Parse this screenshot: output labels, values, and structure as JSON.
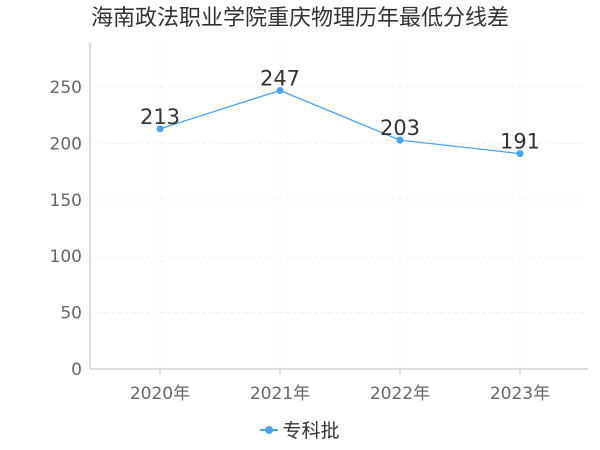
{
  "chart_data": {
    "type": "line",
    "title": "海南政法职业学院重庆物理历年最低分线差",
    "categories": [
      "2020年",
      "2021年",
      "2022年",
      "2023年"
    ],
    "series": [
      {
        "name": "专科批",
        "values": [
          213,
          247,
          203,
          191
        ],
        "color": "#4aa3f0"
      }
    ],
    "yticks": [
      0,
      50,
      100,
      150,
      200,
      250
    ],
    "ylim": [
      0,
      290
    ],
    "grid": true,
    "legend_position": "bottom"
  }
}
